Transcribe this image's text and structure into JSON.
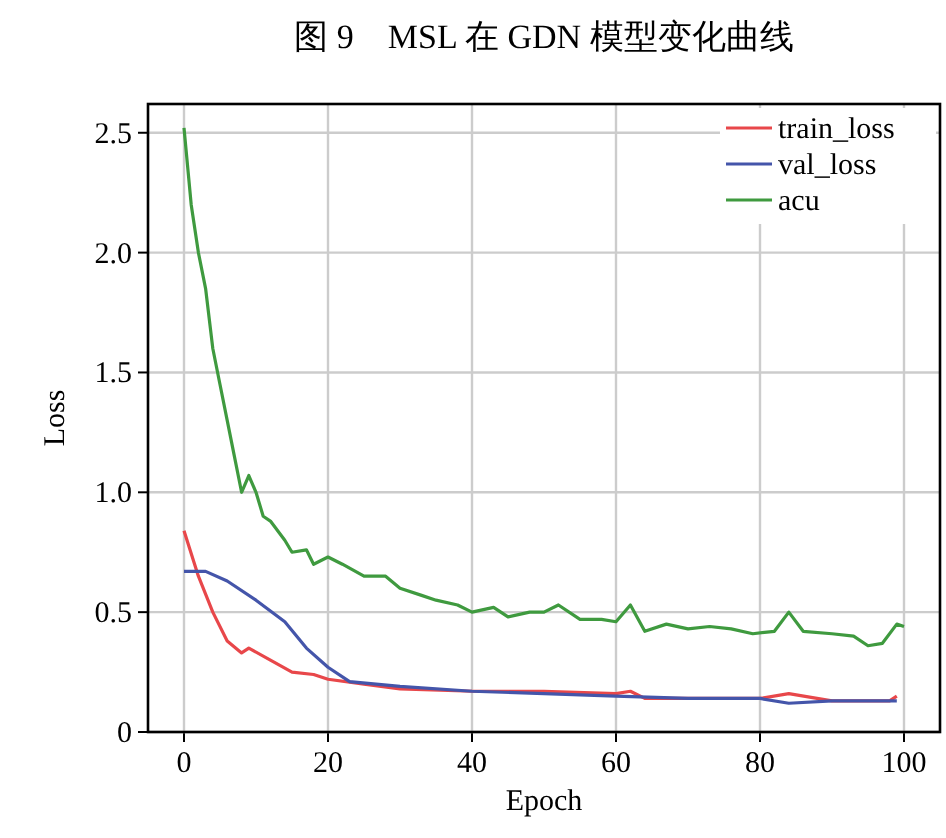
{
  "chart_data": {
    "type": "line",
    "title": "图 9　MSL 在 GDN 模型变化曲线",
    "xlabel": "Epoch",
    "ylabel": "Loss",
    "xlim": [
      -5,
      105
    ],
    "ylim": [
      0,
      2.62
    ],
    "xticks": [
      0,
      20,
      40,
      60,
      80,
      100
    ],
    "yticks": [
      {
        "value": 0,
        "label": "0"
      },
      2.5,
      {
        "value": 0.5,
        "label": "0.5"
      },
      {
        "value": 1,
        "label": "1.0"
      },
      1.5,
      {
        "value": 2,
        "label": "2.0"
      }
    ],
    "grid": true,
    "legend": "top right",
    "line_style": "solid",
    "marker": "none",
    "series": [
      {
        "name": "train_loss",
        "color": "#e8474a",
        "x": [
          0,
          2,
          4,
          6,
          8,
          9,
          12,
          15,
          18,
          20,
          25,
          30,
          40,
          50,
          60,
          62,
          64,
          80,
          84,
          90,
          98,
          99
        ],
        "values": [
          0.84,
          0.65,
          0.5,
          0.38,
          0.33,
          0.35,
          0.3,
          0.25,
          0.24,
          0.22,
          0.2,
          0.18,
          0.17,
          0.17,
          0.16,
          0.17,
          0.14,
          0.14,
          0.16,
          0.13,
          0.13,
          0.15
        ]
      },
      {
        "name": "val_loss",
        "color": "#4455aa",
        "x": [
          0,
          3,
          6,
          10,
          14,
          17,
          20,
          23,
          30,
          40,
          50,
          60,
          70,
          80,
          84,
          90,
          99
        ],
        "values": [
          0.67,
          0.67,
          0.63,
          0.55,
          0.46,
          0.35,
          0.27,
          0.21,
          0.19,
          0.17,
          0.16,
          0.15,
          0.14,
          0.14,
          0.12,
          0.13,
          0.13
        ]
      },
      {
        "name": "acu",
        "color": "#3f9a3f",
        "x": [
          0,
          1,
          2,
          3,
          4,
          5,
          6,
          7,
          8,
          9,
          10,
          11,
          12,
          14,
          15,
          17,
          18,
          20,
          22,
          25,
          28,
          30,
          33,
          35,
          38,
          40,
          43,
          45,
          48,
          50,
          52,
          55,
          58,
          60,
          62,
          64,
          67,
          70,
          73,
          76,
          79,
          82,
          84,
          86,
          90,
          93,
          95,
          97,
          99,
          100
        ],
        "values": [
          2.52,
          2.2,
          2.0,
          1.85,
          1.6,
          1.45,
          1.3,
          1.15,
          1.0,
          1.07,
          1.0,
          0.9,
          0.88,
          0.8,
          0.75,
          0.76,
          0.7,
          0.73,
          0.7,
          0.65,
          0.65,
          0.6,
          0.57,
          0.55,
          0.53,
          0.5,
          0.52,
          0.48,
          0.5,
          0.5,
          0.53,
          0.47,
          0.47,
          0.46,
          0.53,
          0.42,
          0.45,
          0.43,
          0.44,
          0.43,
          0.41,
          0.42,
          0.5,
          0.42,
          0.41,
          0.4,
          0.36,
          0.37,
          0.45,
          0.44
        ]
      }
    ]
  }
}
